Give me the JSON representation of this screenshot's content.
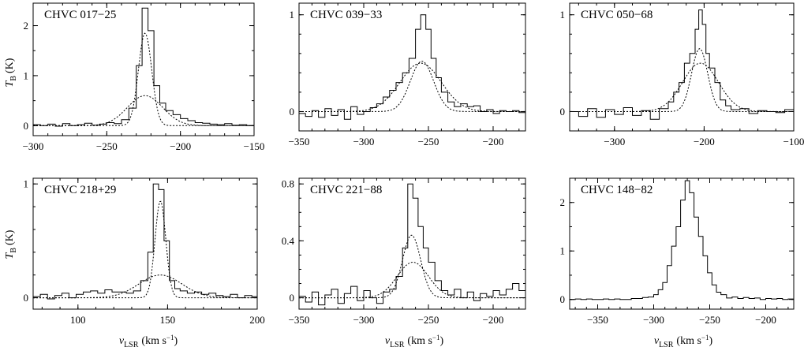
{
  "chart_data": [
    {
      "type": "line",
      "title": "CHVC 017−25",
      "xlim": [
        -300,
        -150
      ],
      "ylim": [
        -0.2,
        2.45
      ],
      "xticks": [
        -300,
        -250,
        -200,
        -150
      ],
      "xtick_labels": [
        "−300",
        "−250",
        "−200",
        "−150"
      ],
      "yticks": [
        0,
        1,
        2
      ],
      "ytick_labels": [
        "0",
        "1",
        "2"
      ],
      "series": [
        {
          "style": "histogram",
          "x": [
            -300,
            -295,
            -290,
            -285,
            -280,
            -275,
            -270,
            -265,
            -260,
            -255,
            -250,
            -245,
            -240,
            -235,
            -230,
            -226,
            -222,
            -218,
            -214,
            -210,
            -205,
            -200,
            -195,
            -190,
            -185,
            -180,
            -175,
            -170,
            -165,
            -160,
            -155,
            -150
          ],
          "y": [
            0.02,
            0.0,
            0.03,
            -0.01,
            0.04,
            0.0,
            0.02,
            0.05,
            0.01,
            0.03,
            0.06,
            0.04,
            0.12,
            0.35,
            1.2,
            2.35,
            1.9,
            0.8,
            0.45,
            0.3,
            0.22,
            0.14,
            0.1,
            0.06,
            0.05,
            0.03,
            0.02,
            0.04,
            0.01,
            0.02,
            0.0,
            0.01
          ]
        },
        {
          "style": "gaussian",
          "amplitude": 1.85,
          "center": -224,
          "sigma": 4.5
        },
        {
          "style": "gaussian",
          "amplitude": 0.6,
          "center": -224,
          "sigma": 12
        }
      ]
    },
    {
      "type": "line",
      "title": "CHVC 039−33",
      "xlim": [
        -350,
        -175
      ],
      "ylim": [
        -0.2,
        1.12
      ],
      "xticks": [
        -350,
        -300,
        -250,
        -200
      ],
      "xtick_labels": [
        "−350",
        "−300",
        "−250",
        "−200"
      ],
      "yticks": [
        0,
        1
      ],
      "ytick_labels": [
        "0",
        "1"
      ],
      "series": [
        {
          "style": "histogram",
          "x": [
            -350,
            -345,
            -340,
            -335,
            -330,
            -325,
            -320,
            -315,
            -310,
            -305,
            -300,
            -295,
            -290,
            -285,
            -280,
            -275,
            -270,
            -265,
            -260,
            -256,
            -252,
            -248,
            -244,
            -240,
            -235,
            -230,
            -225,
            -220,
            -215,
            -210,
            -205,
            -200,
            -195,
            -190,
            -185,
            -180
          ],
          "y": [
            -0.02,
            -0.05,
            0.01,
            -0.06,
            0.03,
            -0.04,
            0.02,
            -0.08,
            0.05,
            -0.03,
            0.0,
            0.04,
            0.08,
            0.15,
            0.22,
            0.3,
            0.4,
            0.55,
            0.85,
            1.0,
            0.85,
            0.55,
            0.35,
            0.2,
            0.1,
            0.05,
            0.08,
            0.05,
            0.06,
            0.0,
            0.02,
            -0.02,
            0.01,
            0.0,
            0.01,
            -0.01
          ]
        },
        {
          "style": "gaussian",
          "amplitude": 0.52,
          "center": -255,
          "sigma": 9
        },
        {
          "style": "gaussian",
          "amplitude": 0.5,
          "center": -256,
          "sigma": 16
        }
      ]
    },
    {
      "type": "line",
      "title": "CHVC 050−68",
      "xlim": [
        -350,
        -100
      ],
      "ylim": [
        -0.2,
        1.12
      ],
      "xticks": [
        -300,
        -200,
        -100
      ],
      "xtick_labels": [
        "−300",
        "−200",
        "−100"
      ],
      "yticks": [
        0,
        1
      ],
      "ytick_labels": [
        "0",
        "1"
      ],
      "series": [
        {
          "style": "histogram",
          "x": [
            -350,
            -340,
            -330,
            -320,
            -310,
            -300,
            -290,
            -280,
            -270,
            -260,
            -250,
            -240,
            -234,
            -228,
            -222,
            -216,
            -210,
            -206,
            -202,
            -198,
            -194,
            -188,
            -182,
            -176,
            -170,
            -160,
            -150,
            -140,
            -130,
            -120,
            -110,
            -100
          ],
          "y": [
            0.0,
            -0.05,
            0.03,
            -0.06,
            0.02,
            -0.03,
            0.04,
            -0.04,
            0.01,
            -0.08,
            0.03,
            0.1,
            0.2,
            0.3,
            0.5,
            0.6,
            0.85,
            1.05,
            0.9,
            0.6,
            0.45,
            0.3,
            0.12,
            0.06,
            0.02,
            0.03,
            -0.02,
            0.01,
            0.0,
            -0.01,
            0.02,
            0.0
          ]
        },
        {
          "style": "gaussian",
          "amplitude": 0.65,
          "center": -205,
          "sigma": 9
        },
        {
          "style": "gaussian",
          "amplitude": 0.5,
          "center": -204,
          "sigma": 20
        }
      ]
    },
    {
      "type": "line",
      "title": "CHVC 218+29",
      "xlim": [
        75,
        200
      ],
      "ylim": [
        -0.1,
        1.05
      ],
      "xticks": [
        100,
        150,
        200
      ],
      "xtick_labels": [
        "100",
        "150",
        "200"
      ],
      "yticks": [
        0,
        1
      ],
      "ytick_labels": [
        "0",
        "1"
      ],
      "series": [
        {
          "style": "histogram",
          "x": [
            75,
            79,
            83,
            87,
            91,
            95,
            99,
            103,
            107,
            111,
            115,
            119,
            123,
            127,
            131,
            135,
            139,
            142,
            145,
            148,
            151,
            154,
            157,
            161,
            165,
            169,
            173,
            177,
            181,
            185,
            189,
            193,
            197,
            200
          ],
          "y": [
            0.01,
            0.03,
            -0.01,
            0.02,
            0.04,
            0.0,
            0.03,
            0.05,
            0.06,
            0.04,
            0.07,
            0.05,
            0.05,
            0.04,
            0.06,
            0.15,
            0.4,
            1.0,
            0.95,
            0.5,
            0.15,
            0.08,
            0.06,
            0.04,
            0.05,
            0.03,
            0.04,
            0.02,
            0.01,
            0.03,
            0.0,
            0.02,
            0.01,
            0.02
          ]
        },
        {
          "style": "gaussian",
          "amplitude": 0.85,
          "center": 146,
          "sigma": 3
        },
        {
          "style": "gaussian",
          "amplitude": 0.2,
          "center": 146,
          "sigma": 12
        }
      ]
    },
    {
      "type": "line",
      "title": "CHVC 221−88",
      "xlim": [
        -350,
        -175
      ],
      "ylim": [
        -0.08,
        0.84
      ],
      "xticks": [
        -350,
        -300,
        -250,
        -200
      ],
      "xtick_labels": [
        "−350",
        "−300",
        "−250",
        "−200"
      ],
      "yticks": [
        0,
        0.4,
        0.8
      ],
      "ytick_labels": [
        "0",
        "0.4",
        "0.8"
      ],
      "series": [
        {
          "style": "histogram",
          "x": [
            -350,
            -345,
            -340,
            -335,
            -330,
            -325,
            -320,
            -315,
            -310,
            -305,
            -300,
            -295,
            -290,
            -285,
            -280,
            -275,
            -270,
            -266,
            -262,
            -258,
            -254,
            -250,
            -245,
            -240,
            -235,
            -230,
            -225,
            -220,
            -215,
            -210,
            -205,
            -200,
            -195,
            -190,
            -185,
            -180
          ],
          "y": [
            0.01,
            -0.03,
            0.04,
            -0.05,
            0.02,
            0.06,
            -0.04,
            0.03,
            0.08,
            -0.02,
            0.05,
            0.0,
            -0.04,
            0.04,
            0.06,
            0.15,
            0.35,
            0.8,
            0.7,
            0.5,
            0.35,
            0.25,
            0.12,
            0.05,
            0.02,
            0.06,
            0.0,
            0.04,
            -0.02,
            0.03,
            0.01,
            0.05,
            0.02,
            0.06,
            0.1,
            0.05
          ]
        },
        {
          "style": "gaussian",
          "amplitude": 0.44,
          "center": -263,
          "sigma": 7
        },
        {
          "style": "gaussian",
          "amplitude": 0.25,
          "center": -262,
          "sigma": 12
        }
      ]
    },
    {
      "type": "line",
      "title": "CHVC 148−82",
      "xlim": [
        -375,
        -175
      ],
      "ylim": [
        -0.2,
        2.5
      ],
      "xticks": [
        -350,
        -300,
        -250,
        -200
      ],
      "xtick_labels": [
        "−350",
        "−300",
        "−250",
        "−200"
      ],
      "yticks": [
        0,
        1,
        2
      ],
      "ytick_labels": [
        "0",
        "1",
        "2"
      ],
      "series": [
        {
          "style": "histogram",
          "x": [
            -375,
            -370,
            -365,
            -360,
            -355,
            -350,
            -345,
            -340,
            -335,
            -330,
            -325,
            -320,
            -315,
            -310,
            -305,
            -300,
            -296,
            -292,
            -288,
            -284,
            -280,
            -276,
            -272,
            -268,
            -264,
            -260,
            -256,
            -252,
            -248,
            -244,
            -240,
            -235,
            -230,
            -225,
            -220,
            -215,
            -210,
            -205,
            -200,
            -195,
            -190,
            -185,
            -180,
            -175
          ],
          "y": [
            0.0,
            0.01,
            0.0,
            0.01,
            0.0,
            0.0,
            0.01,
            0.0,
            0.01,
            0.0,
            0.0,
            0.02,
            0.02,
            0.04,
            0.05,
            0.1,
            0.2,
            0.35,
            0.7,
            1.1,
            1.5,
            2.05,
            2.45,
            2.2,
            1.7,
            1.3,
            0.9,
            0.55,
            0.3,
            0.15,
            0.1,
            0.03,
            0.05,
            0.02,
            0.04,
            0.02,
            0.03,
            0.0,
            0.02,
            0.01,
            0.02,
            0.0,
            0.01,
            0.0
          ]
        }
      ]
    }
  ],
  "axis_labels": {
    "y": "T",
    "y_sub": "B",
    "y_unit": "(K)",
    "x": "v",
    "x_sub": "LSR",
    "x_unit": "(km s",
    "x_unit_sup": "−1",
    "x_unit_end": ")"
  }
}
